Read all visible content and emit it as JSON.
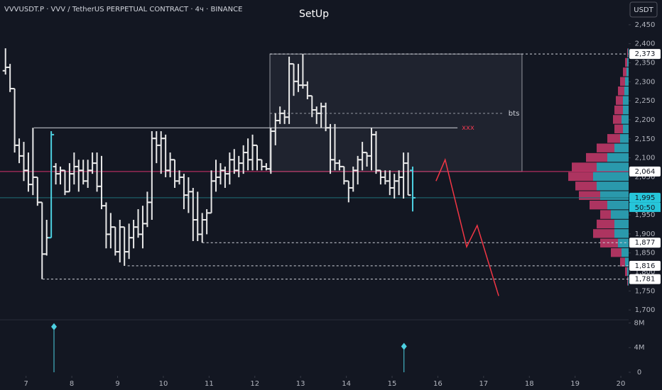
{
  "header": {
    "symbol": "VVVUSDT.P · VVV / TetherUS PERPETUAL CONTRACT · 4ч · BINANCE",
    "currency": "USDT"
  },
  "chart_data": {
    "type": "ohlc",
    "title": "SetUp",
    "x": [
      6.55,
      6.65,
      6.75,
      6.85,
      6.95,
      7.05,
      7.15,
      7.25,
      7.35,
      7.45,
      7.55,
      7.65,
      7.75,
      7.85,
      7.95,
      8.05,
      8.15,
      8.25,
      8.35,
      8.45,
      8.55,
      8.65,
      8.75,
      8.85,
      8.95,
      9.05,
      9.15,
      9.25,
      9.35,
      9.45,
      9.55,
      9.65,
      9.75,
      9.85,
      9.95,
      10.05,
      10.15,
      10.25,
      10.35,
      10.45,
      10.55,
      10.65,
      10.75,
      10.85,
      10.95,
      11.05,
      11.15,
      11.25,
      11.35,
      11.45,
      11.55,
      11.65,
      11.75,
      11.85,
      11.95,
      12.05,
      12.15,
      12.25,
      12.35,
      12.45,
      12.55,
      12.65,
      12.75,
      12.85,
      12.95,
      13.05,
      13.15,
      13.25,
      13.35,
      13.45,
      13.55,
      13.65,
      13.75,
      13.85,
      13.95,
      14.05,
      14.15,
      14.25,
      14.35,
      14.45,
      14.55,
      14.65,
      14.75,
      14.85,
      14.95,
      15.05,
      15.15,
      15.25,
      15.35,
      15.45
    ],
    "open": [
      2329,
      2338,
      2282,
      2133,
      2105,
      2067,
      2030,
      2049,
      1983,
      1847,
      1890,
      2077,
      2058,
      2067,
      2011,
      2058,
      2077,
      2067,
      2039,
      2067,
      2086,
      2025,
      1974,
      1899,
      1918,
      1853,
      1918,
      1853,
      1890,
      1918,
      1899,
      1927,
      1983,
      2151,
      2133,
      2151,
      2067,
      2095,
      2039,
      2049,
      2002,
      2011,
      1937,
      1899,
      1937,
      1955,
      2039,
      2049,
      2067,
      2058,
      2095,
      2067,
      2086,
      2114,
      2095,
      2133,
      2095,
      2077,
      2071,
      2170,
      2198,
      2217,
      2207,
      2347,
      2301,
      2291,
      2291,
      2263,
      2226,
      2217,
      2235,
      2179,
      2095,
      2086,
      2077,
      2039,
      2021,
      2067,
      2095,
      2114,
      2105,
      2161,
      2067,
      2049,
      2039,
      2021,
      2039,
      2049,
      2086,
      2067
    ],
    "high": [
      2388,
      2347,
      2282,
      2151,
      2142,
      2114,
      2179,
      2049,
      1983,
      1937,
      2170,
      2086,
      2077,
      2067,
      2086,
      2114,
      2095,
      2095,
      2095,
      2114,
      2114,
      2105,
      1983,
      1955,
      1918,
      1937,
      1918,
      1927,
      1937,
      1965,
      1974,
      2011,
      2170,
      2170,
      2170,
      2161,
      2114,
      2095,
      2067,
      2058,
      2049,
      2021,
      2011,
      1955,
      1965,
      2067,
      2095,
      2086,
      2077,
      2114,
      2123,
      2105,
      2133,
      2151,
      2161,
      2133,
      2095,
      2086,
      2179,
      2217,
      2235,
      2226,
      2366,
      2347,
      2347,
      2373,
      2301,
      2263,
      2235,
      2245,
      2245,
      2189,
      2189,
      2095,
      2077,
      2039,
      2077,
      2105,
      2142,
      2114,
      2179,
      2170,
      2067,
      2067,
      2067,
      2058,
      2067,
      2114,
      2114,
      2077
    ],
    "low": [
      2319,
      2273,
      2114,
      2086,
      2039,
      2011,
      2002,
      1974,
      1781,
      1843,
      1890,
      2030,
      2030,
      2002,
      2011,
      2030,
      2011,
      2030,
      2021,
      2058,
      2011,
      1965,
      1862,
      1862,
      1843,
      1825,
      1816,
      1834,
      1862,
      1890,
      1862,
      1918,
      1937,
      2086,
      2058,
      2049,
      2049,
      2021,
      2030,
      1965,
      1955,
      1881,
      1881,
      1877,
      1899,
      1955,
      2011,
      2030,
      2021,
      2030,
      2058,
      2049,
      2058,
      2067,
      2067,
      2067,
      2067,
      2067,
      2058,
      2133,
      2189,
      2189,
      2189,
      2263,
      2273,
      2282,
      2254,
      2207,
      2189,
      2179,
      2170,
      2058,
      2067,
      2067,
      2030,
      1983,
      2011,
      2030,
      2067,
      2077,
      2067,
      2058,
      2030,
      2030,
      2002,
      1993,
      2002,
      1993,
      2002,
      1959
    ],
    "close": [
      2338,
      2282,
      2133,
      2105,
      2067,
      2030,
      2049,
      1983,
      1847,
      1890,
      2161,
      2058,
      2067,
      2011,
      2058,
      2077,
      2067,
      2039,
      2067,
      2086,
      2025,
      1974,
      1899,
      1918,
      1853,
      1918,
      1853,
      1890,
      1918,
      1899,
      1927,
      1983,
      2151,
      2133,
      2151,
      2067,
      2095,
      2039,
      2049,
      2002,
      2011,
      1937,
      1899,
      1937,
      1955,
      2039,
      2049,
      2067,
      2058,
      2095,
      2067,
      2086,
      2114,
      2095,
      2133,
      2095,
      2077,
      2071,
      2170,
      2198,
      2217,
      2207,
      2347,
      2301,
      2291,
      2291,
      2263,
      2226,
      2217,
      2235,
      2179,
      2095,
      2086,
      2077,
      2039,
      2021,
      2067,
      2095,
      2114,
      2105,
      2161,
      2067,
      2049,
      2039,
      2021,
      2039,
      2049,
      2086,
      2002,
      1995
    ],
    "colors": [
      "#e8e8e8",
      "#e8e8e8",
      "#e8e8e8",
      "#e8e8e8",
      "#e8e8e8",
      "#e8e8e8",
      "#e8e8e8",
      "#e8e8e8",
      "#e8e8e8",
      "#e8e8e8",
      "#4dd0e1",
      "#e8e8e8",
      "#e8e8e8",
      "#e8e8e8",
      "#e8e8e8",
      "#e8e8e8",
      "#e8e8e8",
      "#e8e8e8",
      "#e8e8e8",
      "#e8e8e8",
      "#e8e8e8",
      "#e8e8e8",
      "#e8e8e8",
      "#e8e8e8",
      "#e8e8e8",
      "#e8e8e8",
      "#e8e8e8",
      "#e8e8e8",
      "#e8e8e8",
      "#e8e8e8",
      "#e8e8e8",
      "#e8e8e8",
      "#e8e8e8",
      "#e8e8e8",
      "#e8e8e8",
      "#e8e8e8",
      "#e8e8e8",
      "#e8e8e8",
      "#e8e8e8",
      "#e8e8e8",
      "#e8e8e8",
      "#e8e8e8",
      "#e8e8e8",
      "#e8e8e8",
      "#e8e8e8",
      "#e8e8e8",
      "#e8e8e8",
      "#e8e8e8",
      "#e8e8e8",
      "#e8e8e8",
      "#e8e8e8",
      "#e8e8e8",
      "#e8e8e8",
      "#e8e8e8",
      "#e8e8e8",
      "#e8e8e8",
      "#e8e8e8",
      "#e8e8e8",
      "#e8e8e8",
      "#e8e8e8",
      "#e8e8e8",
      "#e8e8e8",
      "#e8e8e8",
      "#e8e8e8",
      "#e8e8e8",
      "#e8e8e8",
      "#e8e8e8",
      "#e8e8e8",
      "#e8e8e8",
      "#e8e8e8",
      "#e8e8e8",
      "#e8e8e8",
      "#e8e8e8",
      "#e8e8e8",
      "#e8e8e8",
      "#e8e8e8",
      "#e8e8e8",
      "#e8e8e8",
      "#e8e8e8",
      "#e8e8e8",
      "#e8e8e8",
      "#e8e8e8",
      "#e8e8e8",
      "#e8e8e8",
      "#e8e8e8",
      "#e8e8e8",
      "#e8e8e8",
      "#e8e8e8",
      "#e8e8e8",
      "#4dd0e1"
    ],
    "xlim": [
      6.43,
      20.17
    ],
    "xticks": [
      7,
      8,
      9,
      10,
      11,
      12,
      13,
      14,
      15,
      16,
      17,
      18,
      19,
      20
    ],
    "ylim": [
      1676,
      2515
    ],
    "yticks": [
      {
        "value": 1700,
        "label": "1,700"
      },
      {
        "value": 1750,
        "label": "1,750"
      },
      {
        "value": 1800,
        "label": "1,800"
      },
      {
        "value": 1850,
        "label": "1,850"
      },
      {
        "value": 1900,
        "label": "1,900"
      },
      {
        "value": 1950,
        "label": "1,950"
      },
      {
        "value": 2000,
        "label": "2,000"
      },
      {
        "value": 2050,
        "label": "2,050"
      },
      {
        "value": 2100,
        "label": "2,100"
      },
      {
        "value": 2150,
        "label": "2,150"
      },
      {
        "value": 2200,
        "label": "2,200"
      },
      {
        "value": 2250,
        "label": "2,250"
      },
      {
        "value": 2300,
        "label": "2,300"
      },
      {
        "value": 2350,
        "label": "2,350"
      },
      {
        "value": 2400,
        "label": "2,400"
      },
      {
        "value": 2450,
        "label": "2,450"
      }
    ],
    "levels": [
      {
        "value": 2373,
        "label": "2,373",
        "from": 12.33,
        "style": "dotted",
        "color": "#d1d4dc",
        "label_bg": "#ffffff",
        "label_color": "#131722"
      },
      {
        "value": 2064,
        "label": "2,064",
        "style": "solid",
        "color": "#d6336c",
        "label_bg": "#ffffff",
        "label_color": "#131722"
      },
      {
        "value": 1995,
        "label": "1,995",
        "style": "solid",
        "color": "#1e6f78",
        "label_bg": "#26c6da",
        "label_color": "#131722"
      },
      {
        "value": 1877,
        "label": "1,877",
        "from": 10.85,
        "style": "dotted",
        "color": "#d1d4dc",
        "label_bg": "#ffffff",
        "label_color": "#131722"
      },
      {
        "value": 1816,
        "label": "1,816",
        "from": 9.22,
        "style": "dotted",
        "color": "#d1d4dc",
        "label_bg": "#ffffff",
        "label_color": "#131722"
      },
      {
        "value": 1781,
        "label": "1,781",
        "from": 7.36,
        "style": "dotted",
        "color": "#d1d4dc",
        "label_bg": "#ffffff",
        "label_color": "#131722"
      }
    ],
    "countdown": "50:50",
    "zone": {
      "x": [
        12.33,
        17.84
      ],
      "y": [
        2064,
        2373
      ]
    },
    "lines": [
      {
        "label": "bts",
        "y": 2217,
        "x": [
          12.33,
          17.45
        ],
        "color": "#9598a1",
        "style": "dotted",
        "label_color": "#d1d4dc"
      },
      {
        "label": "xxx",
        "y": 2179,
        "x": [
          7.17,
          16.43
        ],
        "color": "#d1d4dc",
        "style": "solid",
        "label_color": "#e53950"
      }
    ],
    "projection": {
      "x": [
        15.96,
        16.16,
        16.63,
        16.86,
        17.33
      ],
      "y": [
        2039,
        2095,
        1866,
        1922,
        1737
      ],
      "color": "#f23645"
    },
    "volume_profile": {
      "levels": [
        1775,
        1800,
        1825,
        1850,
        1875,
        1900,
        1925,
        1950,
        1975,
        2000,
        2025,
        2050,
        2075,
        2100,
        2125,
        2150,
        2175,
        2200,
        2225,
        2250,
        2275,
        2300,
        2325,
        2350,
        2375
      ],
      "buy": [
        1,
        2,
        5,
        10,
        15,
        20,
        20,
        25,
        30,
        40,
        45,
        50,
        45,
        30,
        20,
        12,
        8,
        10,
        8,
        8,
        6,
        5,
        3,
        2,
        1
      ],
      "sell": [
        1,
        3,
        7,
        15,
        25,
        30,
        25,
        15,
        25,
        30,
        30,
        35,
        35,
        30,
        25,
        18,
        12,
        12,
        12,
        10,
        9,
        7,
        5,
        3,
        1
      ],
      "buy_color": "#2fb0c4",
      "sell_color": "#c93a6b"
    },
    "volume": {
      "x": [
        7.61,
        15.26
      ],
      "values": [
        7.4,
        4.2
      ],
      "ylim": [
        0,
        8.4
      ],
      "yticks": [
        0,
        {
          "value": 4,
          "label": "4M"
        },
        {
          "value": 8,
          "label": "8M"
        }
      ],
      "color": "#4dd0e1"
    }
  }
}
